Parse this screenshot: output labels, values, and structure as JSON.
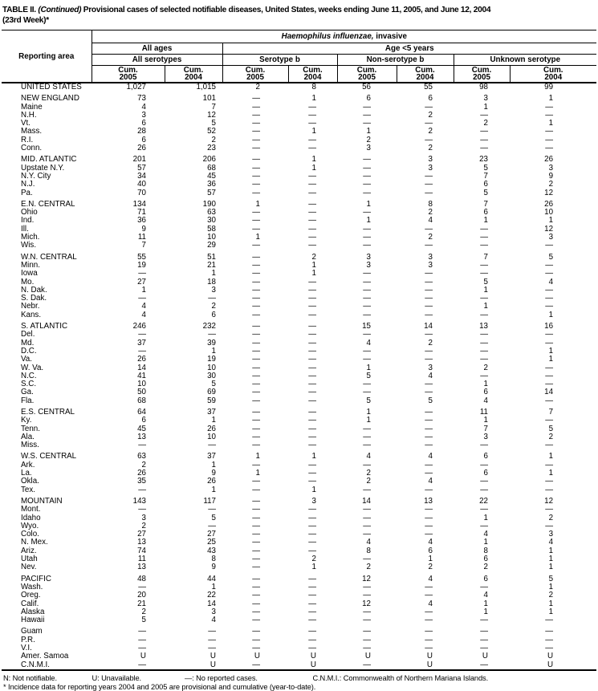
{
  "title": {
    "prefix": "TABLE II. ",
    "continued": "(Continued)",
    "rest": " Provisional cases of selected notifiable diseases, United States, weeks ending June 11, 2005, and June 12, 2004",
    "line2": "(23rd Week)*"
  },
  "table": {
    "reporting_area_label": "Reporting area",
    "disease_italic": "Haemophilus influenzae,",
    "disease_rest": " invasive",
    "group_all_ages": "All ages",
    "group_age_lt5": "Age <5 years",
    "sub_all_serotypes": "All serotypes",
    "sub_serotype_b": "Serotype b",
    "sub_non_serotype_b": "Non-serotype b",
    "sub_unknown_serotype": "Unknown serotype",
    "cum_label": "Cum.",
    "years": [
      "2005",
      "2004",
      "2005",
      "2004",
      "2005",
      "2004",
      "2005",
      "2004"
    ],
    "sections": [
      {
        "rows": [
          {
            "area": "UNITED STATES",
            "values": [
              "1,027",
              "1,015",
              "2",
              "8",
              "56",
              "55",
              "98",
              "99"
            ]
          }
        ]
      },
      {
        "rows": [
          {
            "area": "NEW ENGLAND",
            "values": [
              "73",
              "101",
              "—",
              "1",
              "6",
              "6",
              "3",
              "1"
            ]
          },
          {
            "area": "Maine",
            "values": [
              "4",
              "7",
              "—",
              "—",
              "—",
              "—",
              "1",
              "—"
            ]
          },
          {
            "area": "N.H.",
            "values": [
              "3",
              "12",
              "—",
              "—",
              "—",
              "2",
              "—",
              "—"
            ]
          },
          {
            "area": "Vt.",
            "values": [
              "6",
              "5",
              "—",
              "—",
              "—",
              "—",
              "2",
              "1"
            ]
          },
          {
            "area": "Mass.",
            "values": [
              "28",
              "52",
              "—",
              "1",
              "1",
              "2",
              "—",
              "—"
            ]
          },
          {
            "area": "R.I.",
            "values": [
              "6",
              "2",
              "—",
              "—",
              "2",
              "—",
              "—",
              "—"
            ]
          },
          {
            "area": "Conn.",
            "values": [
              "26",
              "23",
              "—",
              "—",
              "3",
              "2",
              "—",
              "—"
            ]
          }
        ]
      },
      {
        "rows": [
          {
            "area": "MID. ATLANTIC",
            "values": [
              "201",
              "206",
              "—",
              "1",
              "—",
              "3",
              "23",
              "26"
            ]
          },
          {
            "area": "Upstate N.Y.",
            "values": [
              "57",
              "68",
              "—",
              "1",
              "—",
              "3",
              "5",
              "3"
            ]
          },
          {
            "area": "N.Y. City",
            "values": [
              "34",
              "45",
              "—",
              "—",
              "—",
              "—",
              "7",
              "9"
            ]
          },
          {
            "area": "N.J.",
            "values": [
              "40",
              "36",
              "—",
              "—",
              "—",
              "—",
              "6",
              "2"
            ]
          },
          {
            "area": "Pa.",
            "values": [
              "70",
              "57",
              "—",
              "—",
              "—",
              "—",
              "5",
              "12"
            ]
          }
        ]
      },
      {
        "rows": [
          {
            "area": "E.N. CENTRAL",
            "values": [
              "134",
              "190",
              "1",
              "—",
              "1",
              "8",
              "7",
              "26"
            ]
          },
          {
            "area": "Ohio",
            "values": [
              "71",
              "63",
              "—",
              "—",
              "—",
              "2",
              "6",
              "10"
            ]
          },
          {
            "area": "Ind.",
            "values": [
              "36",
              "30",
              "—",
              "—",
              "1",
              "4",
              "1",
              "1"
            ]
          },
          {
            "area": "Ill.",
            "values": [
              "9",
              "58",
              "—",
              "—",
              "—",
              "—",
              "—",
              "12"
            ]
          },
          {
            "area": "Mich.",
            "values": [
              "11",
              "10",
              "1",
              "—",
              "—",
              "2",
              "—",
              "3"
            ]
          },
          {
            "area": "Wis.",
            "values": [
              "7",
              "29",
              "—",
              "—",
              "—",
              "—",
              "—",
              "—"
            ]
          }
        ]
      },
      {
        "rows": [
          {
            "area": "W.N. CENTRAL",
            "values": [
              "55",
              "51",
              "—",
              "2",
              "3",
              "3",
              "7",
              "5"
            ]
          },
          {
            "area": "Minn.",
            "values": [
              "19",
              "21",
              "—",
              "1",
              "3",
              "3",
              "—",
              "—"
            ]
          },
          {
            "area": "Iowa",
            "values": [
              "—",
              "1",
              "—",
              "1",
              "—",
              "—",
              "—",
              "—"
            ]
          },
          {
            "area": "Mo.",
            "values": [
              "27",
              "18",
              "—",
              "—",
              "—",
              "—",
              "5",
              "4"
            ]
          },
          {
            "area": "N. Dak.",
            "values": [
              "1",
              "3",
              "—",
              "—",
              "—",
              "—",
              "1",
              "—"
            ]
          },
          {
            "area": "S. Dak.",
            "values": [
              "—",
              "—",
              "—",
              "—",
              "—",
              "—",
              "—",
              "—"
            ]
          },
          {
            "area": "Nebr.",
            "values": [
              "4",
              "2",
              "—",
              "—",
              "—",
              "—",
              "1",
              "—"
            ]
          },
          {
            "area": "Kans.",
            "values": [
              "4",
              "6",
              "—",
              "—",
              "—",
              "—",
              "—",
              "1"
            ]
          }
        ]
      },
      {
        "rows": [
          {
            "area": "S. ATLANTIC",
            "values": [
              "246",
              "232",
              "—",
              "—",
              "15",
              "14",
              "13",
              "16"
            ]
          },
          {
            "area": "Del.",
            "values": [
              "—",
              "—",
              "—",
              "—",
              "—",
              "—",
              "—",
              "—"
            ]
          },
          {
            "area": "Md.",
            "values": [
              "37",
              "39",
              "—",
              "—",
              "4",
              "2",
              "—",
              "—"
            ]
          },
          {
            "area": "D.C.",
            "values": [
              "—",
              "1",
              "—",
              "—",
              "—",
              "—",
              "—",
              "1"
            ]
          },
          {
            "area": "Va.",
            "values": [
              "26",
              "19",
              "—",
              "—",
              "—",
              "—",
              "—",
              "1"
            ]
          },
          {
            "area": "W. Va.",
            "values": [
              "14",
              "10",
              "—",
              "—",
              "1",
              "3",
              "2",
              "—"
            ]
          },
          {
            "area": "N.C.",
            "values": [
              "41",
              "30",
              "—",
              "—",
              "5",
              "4",
              "—",
              "—"
            ]
          },
          {
            "area": "S.C.",
            "values": [
              "10",
              "5",
              "—",
              "—",
              "—",
              "—",
              "1",
              "—"
            ]
          },
          {
            "area": "Ga.",
            "values": [
              "50",
              "69",
              "—",
              "—",
              "—",
              "—",
              "6",
              "14"
            ]
          },
          {
            "area": "Fla.",
            "values": [
              "68",
              "59",
              "—",
              "—",
              "5",
              "5",
              "4",
              "—"
            ]
          }
        ]
      },
      {
        "rows": [
          {
            "area": "E.S. CENTRAL",
            "values": [
              "64",
              "37",
              "—",
              "—",
              "1",
              "—",
              "11",
              "7"
            ]
          },
          {
            "area": "Ky.",
            "values": [
              "6",
              "1",
              "—",
              "—",
              "1",
              "—",
              "1",
              "—"
            ]
          },
          {
            "area": "Tenn.",
            "values": [
              "45",
              "26",
              "—",
              "—",
              "—",
              "—",
              "7",
              "5"
            ]
          },
          {
            "area": "Ala.",
            "values": [
              "13",
              "10",
              "—",
              "—",
              "—",
              "—",
              "3",
              "2"
            ]
          },
          {
            "area": "Miss.",
            "values": [
              "—",
              "—",
              "—",
              "—",
              "—",
              "—",
              "—",
              "—"
            ]
          }
        ]
      },
      {
        "rows": [
          {
            "area": "W.S. CENTRAL",
            "values": [
              "63",
              "37",
              "1",
              "1",
              "4",
              "4",
              "6",
              "1"
            ]
          },
          {
            "area": "Ark.",
            "values": [
              "2",
              "1",
              "—",
              "—",
              "—",
              "—",
              "—",
              "—"
            ]
          },
          {
            "area": "La.",
            "values": [
              "26",
              "9",
              "1",
              "—",
              "2",
              "—",
              "6",
              "1"
            ]
          },
          {
            "area": "Okla.",
            "values": [
              "35",
              "26",
              "—",
              "—",
              "2",
              "4",
              "—",
              "—"
            ]
          },
          {
            "area": "Tex.",
            "values": [
              "—",
              "1",
              "—",
              "1",
              "—",
              "—",
              "—",
              "—"
            ]
          }
        ]
      },
      {
        "rows": [
          {
            "area": "MOUNTAIN",
            "values": [
              "143",
              "117",
              "—",
              "3",
              "14",
              "13",
              "22",
              "12"
            ]
          },
          {
            "area": "Mont.",
            "values": [
              "—",
              "—",
              "—",
              "—",
              "—",
              "—",
              "—",
              "—"
            ]
          },
          {
            "area": "Idaho",
            "values": [
              "3",
              "5",
              "—",
              "—",
              "—",
              "—",
              "1",
              "2"
            ]
          },
          {
            "area": "Wyo.",
            "values": [
              "2",
              "—",
              "—",
              "—",
              "—",
              "—",
              "—",
              "—"
            ]
          },
          {
            "area": "Colo.",
            "values": [
              "27",
              "27",
              "—",
              "—",
              "—",
              "—",
              "4",
              "3"
            ]
          },
          {
            "area": "N. Mex.",
            "values": [
              "13",
              "25",
              "—",
              "—",
              "4",
              "4",
              "1",
              "4"
            ]
          },
          {
            "area": "Ariz.",
            "values": [
              "74",
              "43",
              "—",
              "—",
              "8",
              "6",
              "8",
              "1"
            ]
          },
          {
            "area": "Utah",
            "values": [
              "11",
              "8",
              "—",
              "2",
              "—",
              "1",
              "6",
              "1"
            ]
          },
          {
            "area": "Nev.",
            "values": [
              "13",
              "9",
              "—",
              "1",
              "2",
              "2",
              "2",
              "1"
            ]
          }
        ]
      },
      {
        "rows": [
          {
            "area": "PACIFIC",
            "values": [
              "48",
              "44",
              "—",
              "—",
              "12",
              "4",
              "6",
              "5"
            ]
          },
          {
            "area": "Wash.",
            "values": [
              "—",
              "1",
              "—",
              "—",
              "—",
              "—",
              "—",
              "1"
            ]
          },
          {
            "area": "Oreg.",
            "values": [
              "20",
              "22",
              "—",
              "—",
              "—",
              "—",
              "4",
              "2"
            ]
          },
          {
            "area": "Calif.",
            "values": [
              "21",
              "14",
              "—",
              "—",
              "12",
              "4",
              "1",
              "1"
            ]
          },
          {
            "area": "Alaska",
            "values": [
              "2",
              "3",
              "—",
              "—",
              "—",
              "—",
              "1",
              "1"
            ]
          },
          {
            "area": "Hawaii",
            "values": [
              "5",
              "4",
              "—",
              "—",
              "—",
              "—",
              "—",
              "—"
            ]
          }
        ]
      },
      {
        "rows": [
          {
            "area": "Guam",
            "values": [
              "—",
              "—",
              "—",
              "—",
              "—",
              "—",
              "—",
              "—"
            ]
          },
          {
            "area": "P.R.",
            "values": [
              "—",
              "—",
              "—",
              "—",
              "—",
              "—",
              "—",
              "—"
            ]
          },
          {
            "area": "V.I.",
            "values": [
              "—",
              "—",
              "—",
              "—",
              "—",
              "—",
              "—",
              "—"
            ]
          },
          {
            "area": "Amer. Samoa",
            "values": [
              "U",
              "U",
              "U",
              "U",
              "U",
              "U",
              "U",
              "U"
            ]
          },
          {
            "area": "C.N.M.I.",
            "values": [
              "—",
              "U",
              "—",
              "U",
              "—",
              "U",
              "—",
              "U"
            ]
          }
        ]
      }
    ]
  },
  "footnotes": {
    "n": "N: Not notifiable.",
    "u": "U: Unavailable.",
    "dash": "—: No reported cases.",
    "cnmi": "C.N.M.I.: Commonwealth of Northern Mariana Islands.",
    "line2": "* Incidence data for reporting years 2004 and 2005 are provisional and cumulative (year-to-date)."
  },
  "colors": {
    "background": "#ffffff",
    "text": "#000000",
    "rule": "#000000"
  }
}
